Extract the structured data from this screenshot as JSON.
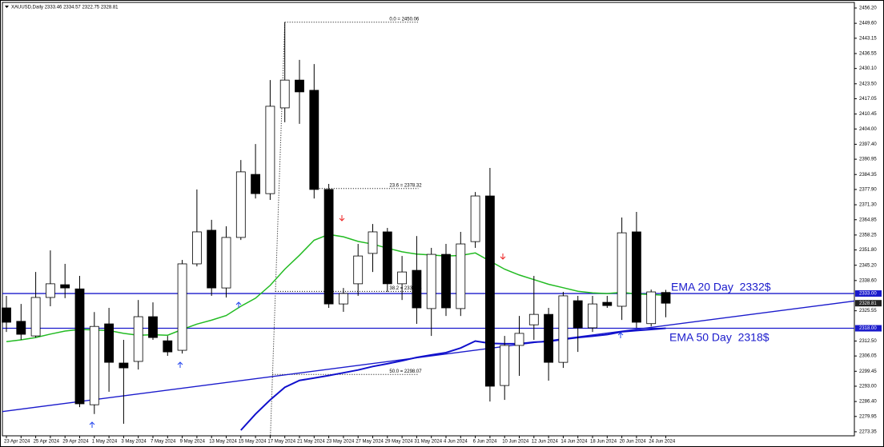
{
  "chart_data": {
    "type": "candlestick",
    "title": "XAUUSD,Daily",
    "categories": [
      "23 Apr 2024",
      null,
      "25 Apr 2024",
      null,
      "29 Apr 2024",
      null,
      "1 May 2024",
      null,
      "3 May 2024",
      null,
      "7 May 2024",
      null,
      "9 May 2024",
      null,
      "13 May 2024",
      null,
      "15 May 2024",
      null,
      "17 May 2024",
      null,
      "21 May 2024",
      null,
      "23 May 2024",
      null,
      "27 May 2024",
      null,
      "29 May 2024",
      null,
      "31 May 2024",
      null,
      "4 Jun 2024",
      null,
      "6 Jun 2024",
      null,
      "10 Jun 2024",
      null,
      "12 Jun 2024",
      null,
      "14 Jun 2024",
      null,
      "18 Jun 2024",
      null,
      "20 Jun 2024",
      null,
      "24 Jun 2024",
      null
    ],
    "open": [
      2326.8,
      2321,
      2314.7,
      2331.3,
      2336.8,
      2335,
      2285,
      2319.9,
      2303,
      2303.7,
      2323,
      2312.6,
      2308.5,
      2345.8,
      2360.3,
      2335.4,
      2357.2,
      2384.4,
      2376.1,
      2413.1,
      2425.1,
      2420.7,
      2377.9,
      2328.5,
      2337.2,
      2350.3,
      2359.6,
      2337.2,
      2343,
      2326.5,
      2349.9,
      2326.5,
      2355.4,
      2375.1,
      2293.3,
      2310.6,
      2319.5,
      2324,
      2303.3,
      2329.9,
      2318.2,
      2329.2,
      2327.5,
      2359.6,
      2320,
      2333.46
    ],
    "high": [
      2332,
      2328.5,
      2342.3,
      2351.6,
      2345.8,
      2340.6,
      2325,
      2326.8,
      2313,
      2330.2,
      2329.2,
      2314.7,
      2347.5,
      2377.9,
      2364.8,
      2362,
      2390.6,
      2397.5,
      2425.1,
      2450.06,
      2433.8,
      2432,
      2380.3,
      2335.4,
      2354.4,
      2363,
      2361.3,
      2349.2,
      2357.8,
      2352.7,
      2354.4,
      2359.6,
      2376.8,
      2387.2,
      2314.7,
      2323.3,
      2340.6,
      2326.8,
      2333.7,
      2332,
      2332,
      2332,
      2365.8,
      2368.2,
      2334.7,
      2334.57
    ],
    "low": [
      2316.4,
      2313,
      2314,
      2327.5,
      2331,
      2284,
      2281,
      2290.6,
      2276.8,
      2300.2,
      2313,
      2306.1,
      2307.1,
      2344.7,
      2332,
      2331.3,
      2356.1,
      2374,
      2373.4,
      2406.9,
      2406.2,
      2374,
      2326.8,
      2325.1,
      2332,
      2342.3,
      2333.7,
      2330.2,
      2319.9,
      2314.7,
      2323.3,
      2323.3,
      2352.7,
      2286.4,
      2287.1,
      2297.5,
      2313,
      2295.4,
      2300.9,
      2307.8,
      2316.4,
      2326.8,
      2321.6,
      2318.2,
      2318.8,
      2322.75
    ],
    "close": [
      2320.6,
      2315.4,
      2331.3,
      2337.2,
      2335.4,
      2285.4,
      2318.8,
      2303.3,
      2300.9,
      2323,
      2314,
      2307.8,
      2345.8,
      2359.6,
      2335.4,
      2357.2,
      2385.5,
      2376.1,
      2413.8,
      2425.1,
      2420,
      2377.9,
      2328.5,
      2333,
      2349.2,
      2359.6,
      2337.2,
      2342.3,
      2326.8,
      2349.9,
      2326.8,
      2354.4,
      2375.1,
      2293,
      2310.6,
      2315.8,
      2324,
      2303.3,
      2332,
      2318.2,
      2328.5,
      2327.8,
      2359.2,
      2320.6,
      2333.7,
      2328.81
    ],
    "up_color": "#ffffff",
    "down_color": "#000000",
    "lines": [
      {
        "color": "#22bb22",
        "values": [
          2312.2,
          2313,
          2314,
          2315.5,
          2316.8,
          2317.5,
          2317.3,
          2317,
          2315.8,
          2315,
          2315.2,
          2315,
          2317.5,
          2319.8,
          2321.5,
          2323.5,
          2327.5,
          2331,
          2336.5,
          2343.5,
          2349.5,
          2356,
          2358.5,
          2357.5,
          2355.5,
          2354.3,
          2352.6,
          2351,
          2350,
          2349.6,
          2349.2,
          2349.4,
          2350.5,
          2347,
          2343.5,
          2341,
          2339,
          2337,
          2335.5,
          2334,
          2333.3,
          2333,
          2333.5,
          2332.8,
          2332.6,
          2332.2
        ]
      },
      {
        "color": "#1010cc",
        "values": [
          null,
          null,
          null,
          null,
          null,
          null,
          null,
          null,
          null,
          null,
          null,
          null,
          null,
          null,
          null,
          null,
          2274,
          2281,
          2287.1,
          2292.5,
          2295.5,
          2296.5,
          2297.6,
          2298.8,
          2300,
          2301.5,
          2302.7,
          2304,
          2305.4,
          2306.5,
          2307.5,
          2309.5,
          2312.5,
          2311.5,
          2311.3,
          2311.3,
          2312,
          2312.3,
          2313.2,
          2314,
          2314.6,
          2315.3,
          2316.5,
          2317,
          2317.5,
          2318
        ]
      }
    ],
    "trend_line": {
      "color": "#1a1acc",
      "values": [
        2282.3,
        2319.2
      ]
    },
    "levels": [
      {
        "value": 2333,
        "label": "2333.00"
      },
      {
        "value": 2318,
        "label": "2318.00"
      }
    ],
    "level_color": "#1a1acc",
    "fibonacci": [
      {
        "value": 2450.06,
        "label": "0.0 = 2450.06"
      },
      {
        "value": 2378.32,
        "label": "23.6 = 2378.32"
      },
      {
        "value": 2333.94,
        "label": "38.2 = 2333.94"
      },
      {
        "value": 2298.07,
        "label": "50.0 = 2298.07"
      }
    ],
    "annotations": [
      "EMA 20 Day  2332$",
      "EMA 50 Day  2318$"
    ],
    "ylim": [
      2271.6,
      2458.62
    ],
    "yticks": [
      {
        "value": 2456.2,
        "label": "2456.20"
      },
      {
        "value": 2449.6,
        "label": "2449.60"
      },
      2443.15,
      2436.55,
      {
        "value": 2430.1,
        "label": "2430.10"
      },
      {
        "value": 2423.5,
        "label": "2423.50"
      },
      2417.05,
      2410.45,
      {
        "value": 2404,
        "label": "2404.00"
      },
      {
        "value": 2397.4,
        "label": "2397.40"
      },
      2390.95,
      2384.35,
      {
        "value": 2377.9,
        "label": "2377.90"
      },
      {
        "value": 2371.3,
        "label": "2371.30"
      },
      2364.85,
      2358.25,
      {
        "value": 2351.8,
        "label": "2351.80"
      },
      {
        "value": 2345.2,
        "label": "2345.20"
      },
      {
        "value": 2338.6,
        "label": "2338.60"
      },
      2325.55,
      {
        "value": 2312.5,
        "label": "2312.50"
      },
      2306.05,
      2299.45,
      {
        "value": 2293,
        "label": "2293.00"
      },
      {
        "value": 2286.4,
        "label": "2286.40"
      },
      2279.95,
      2273.35
    ]
  }
}
